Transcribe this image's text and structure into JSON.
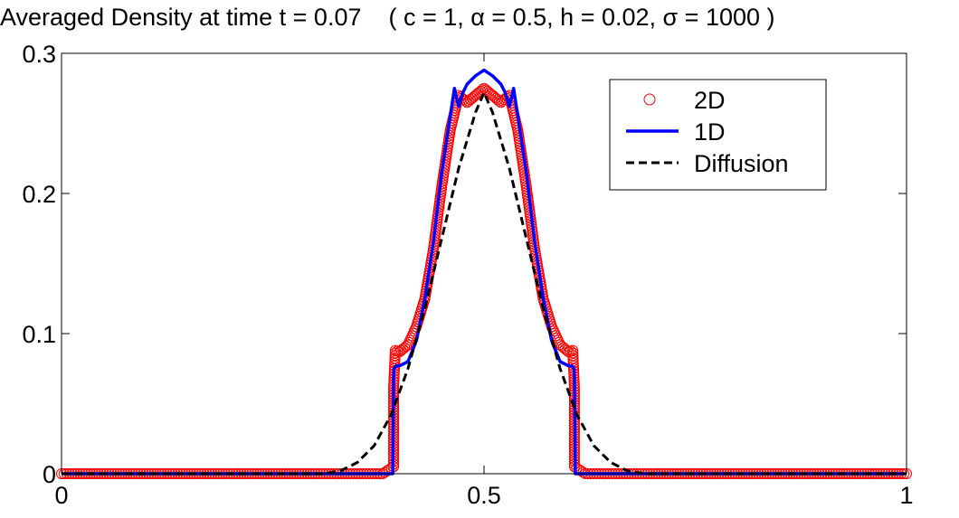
{
  "chart_data": {
    "type": "line",
    "title": "Averaged Density at time t = 0.07    ( c = 1, α = 0.5, h = 0.02, σ = 1000 )",
    "xlabel": "",
    "ylabel": "",
    "xlim": [
      0,
      1
    ],
    "ylim": [
      0,
      0.3
    ],
    "x_ticks": [
      0,
      0.5,
      1
    ],
    "x_tick_labels": [
      "0",
      "0.5",
      "1"
    ],
    "y_ticks": [
      0,
      0.1,
      0.2,
      0.3
    ],
    "y_tick_labels": [
      "0",
      "0.1",
      "0.2",
      "0.3"
    ],
    "grid": false,
    "legend_position": "top-right",
    "series": [
      {
        "name": "2D",
        "style": "markers",
        "marker": "open-circle",
        "color": "#ff0000",
        "x": [
          0,
          0.1,
          0.2,
          0.3,
          0.38,
          0.393,
          0.393,
          0.393,
          0.395,
          0.4,
          0.41,
          0.42,
          0.43,
          0.44,
          0.45,
          0.46,
          0.47,
          0.48,
          0.49,
          0.5,
          0.51,
          0.52,
          0.53,
          0.54,
          0.55,
          0.56,
          0.57,
          0.58,
          0.59,
          0.6,
          0.605,
          0.607,
          0.607,
          0.607,
          0.62,
          0.7,
          0.8,
          0.9,
          1.0
        ],
        "y": [
          0,
          0,
          0,
          0,
          0,
          0.005,
          0.027,
          0.062,
          0.088,
          0.087,
          0.092,
          0.105,
          0.125,
          0.16,
          0.205,
          0.245,
          0.27,
          0.265,
          0.27,
          0.275,
          0.27,
          0.265,
          0.27,
          0.245,
          0.205,
          0.16,
          0.125,
          0.105,
          0.092,
          0.087,
          0.088,
          0.062,
          0.027,
          0.005,
          0,
          0,
          0,
          0,
          0
        ]
      },
      {
        "name": "1D",
        "style": "solid",
        "color": "#0000ff",
        "x": [
          0,
          0.38,
          0.392,
          0.393,
          0.3935,
          0.396,
          0.4,
          0.41,
          0.42,
          0.43,
          0.44,
          0.45,
          0.46,
          0.465,
          0.47,
          0.475,
          0.48,
          0.49,
          0.5,
          0.51,
          0.52,
          0.525,
          0.53,
          0.535,
          0.54,
          0.55,
          0.56,
          0.57,
          0.58,
          0.59,
          0.6,
          0.604,
          0.6065,
          0.607,
          0.608,
          0.62,
          1.0
        ],
        "y": [
          0,
          0,
          0,
          0.07,
          0.075,
          0.077,
          0.077,
          0.08,
          0.095,
          0.125,
          0.165,
          0.215,
          0.255,
          0.275,
          0.262,
          0.272,
          0.278,
          0.284,
          0.288,
          0.284,
          0.278,
          0.272,
          0.262,
          0.275,
          0.255,
          0.215,
          0.165,
          0.125,
          0.095,
          0.08,
          0.077,
          0.077,
          0.075,
          0.07,
          0,
          0,
          0
        ]
      },
      {
        "name": "Diffusion",
        "style": "dashed",
        "color": "#000000",
        "x": [
          0,
          0.31,
          0.33,
          0.35,
          0.37,
          0.39,
          0.41,
          0.43,
          0.45,
          0.47,
          0.49,
          0.5,
          0.51,
          0.53,
          0.55,
          0.57,
          0.59,
          0.61,
          0.63,
          0.65,
          0.67,
          0.69,
          1.0
        ],
        "y": [
          0,
          0,
          0.002,
          0.008,
          0.02,
          0.042,
          0.075,
          0.118,
          0.168,
          0.218,
          0.258,
          0.272,
          0.258,
          0.218,
          0.168,
          0.118,
          0.075,
          0.042,
          0.02,
          0.008,
          0.002,
          0,
          0
        ]
      }
    ]
  }
}
